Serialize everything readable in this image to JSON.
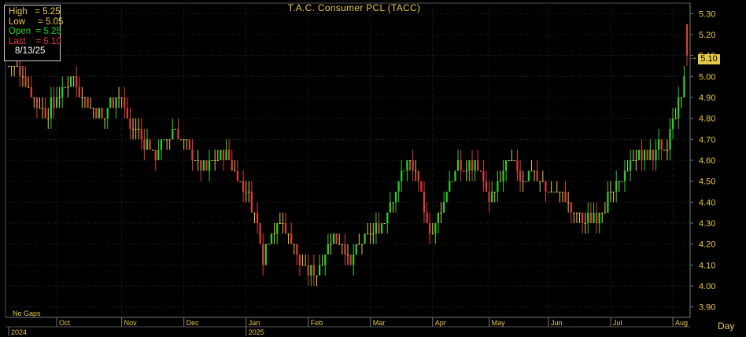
{
  "title": "T.A.C. Consumer PCL (TACC)",
  "info": {
    "high_label": "High",
    "high_value": "5.25",
    "low_label": "Low",
    "low_value": "5.05",
    "open_label": "Open",
    "open_value": "5.25",
    "last_label": "Last",
    "last_value": "5.10",
    "date": "8/13/25"
  },
  "footer": {
    "gaps_label": "No Gaps",
    "period_label": "Day"
  },
  "last_price_tag": "5.10",
  "colors": {
    "up": "#27d327",
    "down": "#e23a3a",
    "neutral": "#e6c84a",
    "grid": "#2a2a2a",
    "axis_text": "#e6c84a",
    "background": "#000000"
  },
  "chart_data": {
    "type": "candlestick",
    "title": "T.A.C. Consumer PCL (TACC)",
    "ylim": [
      3.85,
      5.35
    ],
    "yticks": [
      "3.90",
      "4.00",
      "4.10",
      "4.20",
      "4.30",
      "4.40",
      "4.50",
      "4.60",
      "4.70",
      "4.80",
      "4.90",
      "5.00",
      "5.10",
      "5.20",
      "5.30"
    ],
    "x_months": [
      {
        "label": "Oct",
        "day": 17
      },
      {
        "label": "Nov",
        "day": 40
      },
      {
        "label": "Dec",
        "day": 62
      },
      {
        "label": "Jan",
        "day": 84
      },
      {
        "label": "Feb",
        "day": 106
      },
      {
        "label": "Mar",
        "day": 128
      },
      {
        "label": "Apr",
        "day": 150
      },
      {
        "label": "May",
        "day": 170
      },
      {
        "label": "Jun",
        "day": 191
      },
      {
        "label": "Jul",
        "day": 213
      },
      {
        "label": "Aug",
        "day": 235
      }
    ],
    "x_years": [
      {
        "label": "2024",
        "day": 0
      },
      {
        "label": "2025",
        "day": 84
      }
    ],
    "total_days": 241,
    "close_keypoints": [
      [
        0,
        5.05
      ],
      [
        5,
        5.0
      ],
      [
        9,
        4.9
      ],
      [
        12,
        4.82
      ],
      [
        15,
        4.85
      ],
      [
        18,
        4.92
      ],
      [
        22,
        5.0
      ],
      [
        25,
        4.92
      ],
      [
        30,
        4.85
      ],
      [
        33,
        4.8
      ],
      [
        37,
        4.9
      ],
      [
        39,
        4.92
      ],
      [
        43,
        4.75
      ],
      [
        47,
        4.72
      ],
      [
        51,
        4.62
      ],
      [
        56,
        4.7
      ],
      [
        59,
        4.75
      ],
      [
        62,
        4.68
      ],
      [
        65,
        4.62
      ],
      [
        69,
        4.55
      ],
      [
        73,
        4.62
      ],
      [
        77,
        4.65
      ],
      [
        80,
        4.55
      ],
      [
        84,
        4.45
      ],
      [
        87,
        4.35
      ],
      [
        90,
        4.15
      ],
      [
        93,
        4.25
      ],
      [
        96,
        4.3
      ],
      [
        99,
        4.25
      ],
      [
        102,
        4.15
      ],
      [
        105,
        4.08
      ],
      [
        108,
        4.05
      ],
      [
        111,
        4.15
      ],
      [
        115,
        4.25
      ],
      [
        118,
        4.2
      ],
      [
        121,
        4.1
      ],
      [
        124,
        4.2
      ],
      [
        128,
        4.25
      ],
      [
        132,
        4.3
      ],
      [
        135,
        4.4
      ],
      [
        138,
        4.5
      ],
      [
        141,
        4.6
      ],
      [
        144,
        4.55
      ],
      [
        147,
        4.35
      ],
      [
        150,
        4.25
      ],
      [
        153,
        4.35
      ],
      [
        156,
        4.5
      ],
      [
        159,
        4.55
      ],
      [
        162,
        4.55
      ],
      [
        165,
        4.6
      ],
      [
        168,
        4.5
      ],
      [
        170,
        4.4
      ],
      [
        172,
        4.45
      ],
      [
        175,
        4.55
      ],
      [
        178,
        4.6
      ],
      [
        181,
        4.52
      ],
      [
        185,
        4.55
      ],
      [
        188,
        4.5
      ],
      [
        191,
        4.45
      ],
      [
        194,
        4.45
      ],
      [
        197,
        4.4
      ],
      [
        200,
        4.35
      ],
      [
        203,
        4.3
      ],
      [
        206,
        4.32
      ],
      [
        209,
        4.35
      ],
      [
        212,
        4.42
      ],
      [
        215,
        4.48
      ],
      [
        218,
        4.55
      ],
      [
        221,
        4.6
      ],
      [
        224,
        4.62
      ],
      [
        227,
        4.62
      ],
      [
        230,
        4.65
      ],
      [
        232,
        4.62
      ],
      [
        234,
        4.72
      ],
      [
        236,
        4.82
      ],
      [
        238,
        4.9
      ],
      [
        240,
        5.1
      ]
    ]
  }
}
